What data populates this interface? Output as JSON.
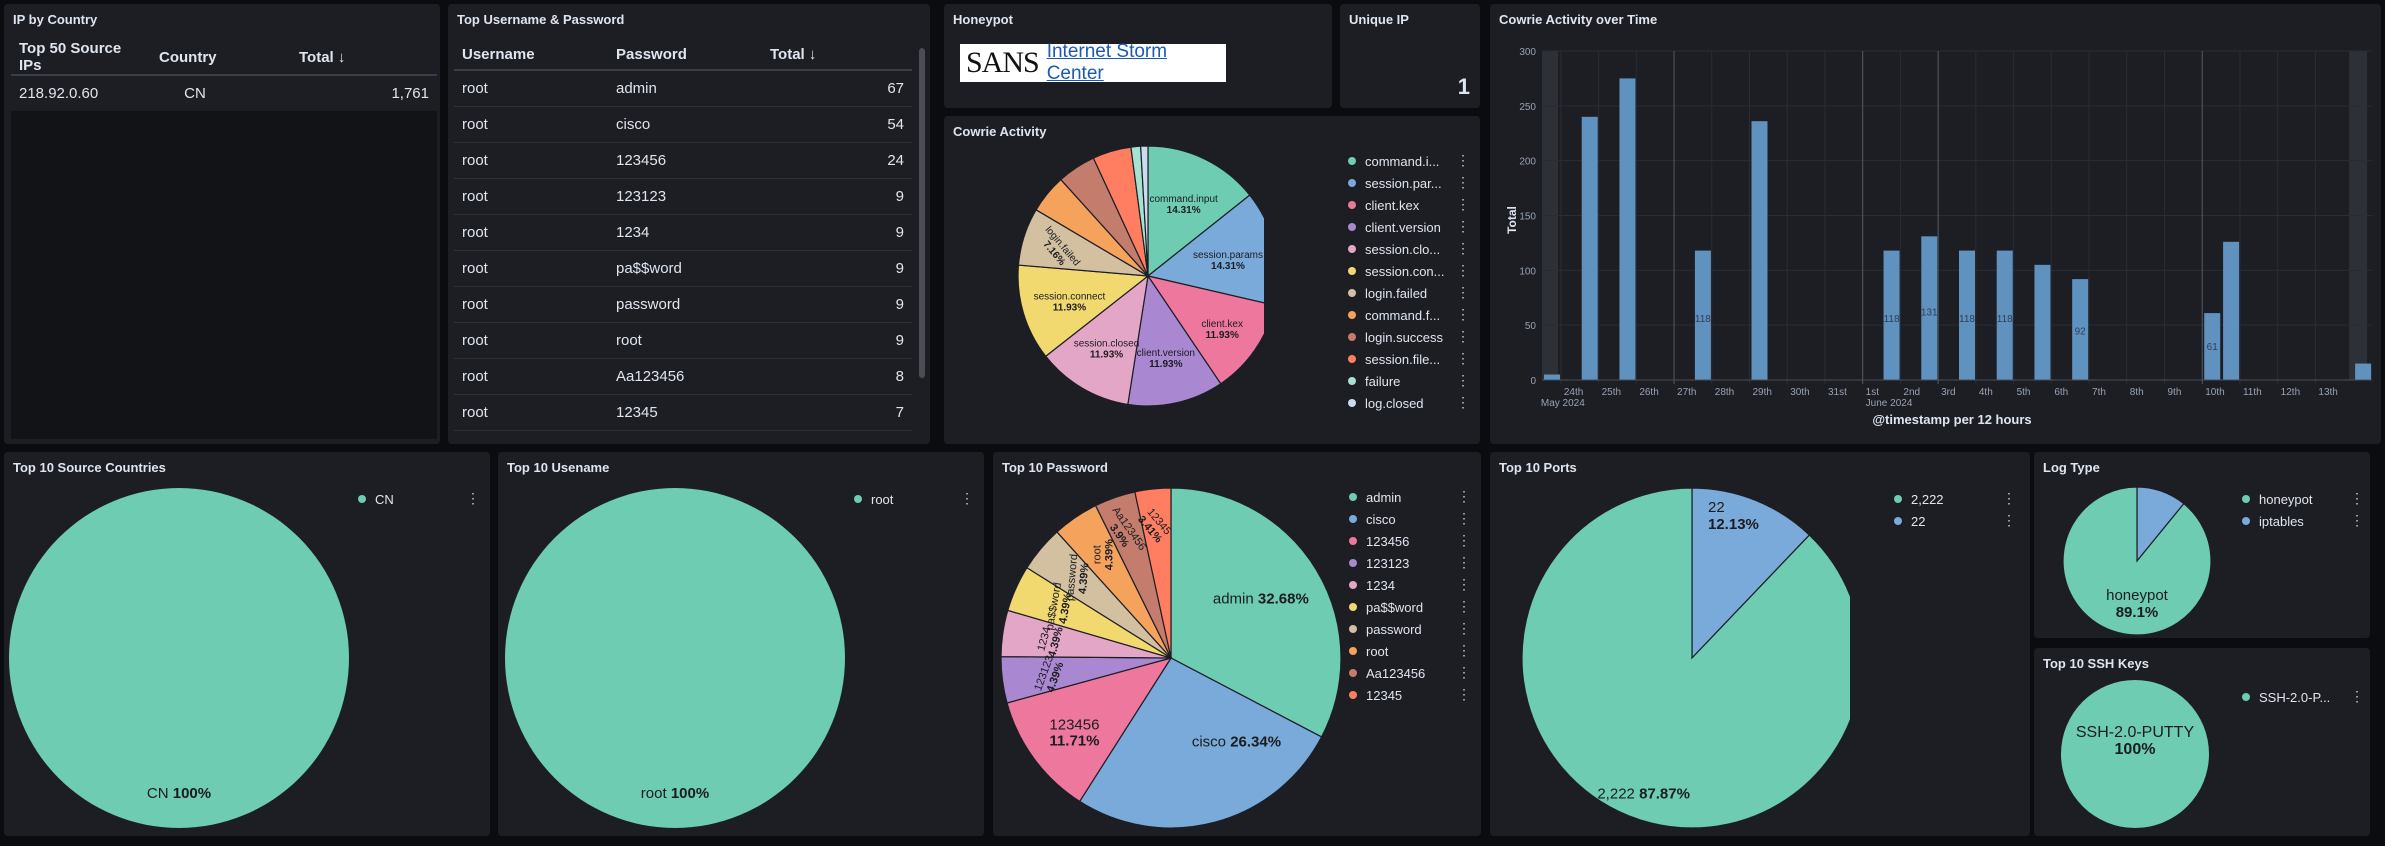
{
  "ip_by_country": {
    "title": "IP by Country",
    "columns": [
      "Top 50 Source IPs",
      "Country",
      "Total ↓"
    ],
    "rows": [
      [
        "218.92.0.60",
        "CN",
        "1,761"
      ]
    ]
  },
  "top_userpass": {
    "title": "Top Username & Password",
    "columns": [
      "Username",
      "Password",
      "Total ↓"
    ],
    "rows": [
      [
        "root",
        "admin",
        "67"
      ],
      [
        "root",
        "cisco",
        "54"
      ],
      [
        "root",
        "123456",
        "24"
      ],
      [
        "root",
        "123123",
        "9"
      ],
      [
        "root",
        "1234",
        "9"
      ],
      [
        "root",
        "pa$$word",
        "9"
      ],
      [
        "root",
        "password",
        "9"
      ],
      [
        "root",
        "root",
        "9"
      ],
      [
        "root",
        "Aa123456",
        "8"
      ],
      [
        "root",
        "12345",
        "7"
      ]
    ]
  },
  "honeypot": {
    "title": "Honeypot",
    "sans": "SANS",
    "link": "Internet Storm Center"
  },
  "unique_ip": {
    "title": "Unique IP",
    "value": "1"
  },
  "cowrie_activity": {
    "title": "Cowrie Activity",
    "legend": [
      "command.i...",
      "session.par...",
      "client.kex",
      "client.version",
      "session.clo...",
      "session.con...",
      "login.failed",
      "command.f...",
      "login.success",
      "session.file...",
      "failure",
      "log.closed"
    ],
    "colors": [
      "#6dccb1",
      "#79aad9",
      "#ee789d",
      "#a987d1",
      "#e4a6c7",
      "#f1d86f",
      "#d2c0a0",
      "#f5a35c",
      "#c47c6c",
      "#ff7e62",
      "#a5e2d4",
      "#cbdcf0"
    ],
    "slice_labels": [
      [
        "command.input",
        "14.31%"
      ],
      [
        "session.params",
        "14.31%"
      ],
      [
        "client.kex",
        "11.93%"
      ],
      [
        "client.version",
        "11.93%"
      ],
      [
        "session.closed",
        "11.93%"
      ],
      [
        "session.connect",
        "11.93%"
      ],
      [
        "login.failed",
        "7.16%"
      ]
    ]
  },
  "activity_over_time": {
    "title": "Cowrie Activity over Time",
    "ylabel": "Total",
    "xlabel": "@timestamp per 12 hours",
    "y_ticks": [
      "300",
      "250",
      "200",
      "150",
      "100",
      "50",
      "0"
    ],
    "x_ticks": [
      "24th",
      "25th",
      "26th",
      "27th",
      "28th",
      "29th",
      "30th",
      "31st",
      "1st",
      "2nd",
      "3rd",
      "4th",
      "5th",
      "6th",
      "7th",
      "8th",
      "9th",
      "10th",
      "11th",
      "12th",
      "13th"
    ],
    "x_sub": [
      "May 2024",
      "June 2024"
    ],
    "bar_labels": [
      "118",
      "118",
      "131",
      "118",
      "118",
      "92",
      "61"
    ]
  },
  "top_source_countries": {
    "title": "Top 10 Source Countries",
    "legend": [
      "CN"
    ],
    "slice_label": "CN",
    "slice_pct": "100%"
  },
  "top_username": {
    "title": "Top 10 Usename",
    "legend": [
      "root"
    ],
    "slice_label": "root",
    "slice_pct": "100%"
  },
  "top_password": {
    "title": "Top 10 Password",
    "legend": [
      "admin",
      "cisco",
      "123456",
      "123123",
      "1234",
      "pa$$word",
      "password",
      "root",
      "Aa123456",
      "12345"
    ],
    "colors": [
      "#6dccb1",
      "#79aad9",
      "#ee789d",
      "#a987d1",
      "#e4a6c7",
      "#f1d86f",
      "#d2c0a0",
      "#f5a35c",
      "#c47c6c",
      "#ff7e62"
    ],
    "labels": [
      [
        "admin",
        "32.68%"
      ],
      [
        "cisco",
        "26.34%"
      ],
      [
        "123456",
        "11.71%"
      ],
      [
        "123123",
        "4.39%"
      ],
      [
        "1234",
        "4.39%"
      ],
      [
        "pa$$word",
        "4.39%"
      ],
      [
        "password",
        "4.39%"
      ],
      [
        "root",
        "4.39%"
      ],
      [
        "Aa123456",
        "3.9%"
      ],
      [
        "12345",
        "3.41%"
      ]
    ]
  },
  "top_ports": {
    "title": "Top 10 Ports",
    "legend": [
      "2,222",
      "22"
    ],
    "labels": [
      [
        "2,222",
        "87.87%"
      ],
      [
        "22",
        "12.13%"
      ]
    ]
  },
  "log_type": {
    "title": "Log Type",
    "legend": [
      "honeypot",
      "iptables"
    ],
    "label": [
      "honeypot",
      "89.1%"
    ]
  },
  "ssh_keys": {
    "title": "Top 10 SSH Keys",
    "legend": [
      "SSH-2.0-P..."
    ],
    "label": [
      "SSH-2.0-PUTTY",
      "100%"
    ]
  },
  "chart_data": [
    {
      "type": "pie",
      "title": "Cowrie Activity",
      "categories": [
        "command.input",
        "session.params",
        "client.kex",
        "client.version",
        "session.closed",
        "session.connect",
        "login.failed",
        "command.failed",
        "login.success",
        "session.file_download",
        "failure",
        "log.closed"
      ],
      "values": [
        14.31,
        14.31,
        11.93,
        11.93,
        11.93,
        11.93,
        7.16,
        4.8,
        4.8,
        4.8,
        1.2,
        0.9
      ]
    },
    {
      "type": "bar",
      "title": "Cowrie Activity over Time",
      "xlabel": "@timestamp per 12 hours",
      "ylabel": "Total",
      "ylim": [
        0,
        300
      ],
      "x": [
        "2024-05-23 12:00",
        "2024-05-24 12:00",
        "2024-05-25 12:00",
        "2024-05-27 12:00",
        "2024-05-29 00:00",
        "2024-06-01 12:00",
        "2024-06-02 12:00",
        "2024-06-03 12:00",
        "2024-06-04 12:00",
        "2024-06-05 12:00",
        "2024-06-06 12:00",
        "2024-06-10 00:00",
        "2024-06-10 12:00",
        "2024-06-14 00:00"
      ],
      "values": [
        5,
        240,
        275,
        118,
        236,
        118,
        131,
        118,
        118,
        105,
        92,
        61,
        126,
        15
      ]
    },
    {
      "type": "pie",
      "title": "Top 10 Source Countries",
      "categories": [
        "CN"
      ],
      "values": [
        100
      ]
    },
    {
      "type": "pie",
      "title": "Top 10 Usename",
      "categories": [
        "root"
      ],
      "values": [
        100
      ]
    },
    {
      "type": "pie",
      "title": "Top 10 Password",
      "categories": [
        "admin",
        "cisco",
        "123456",
        "123123",
        "1234",
        "pa$$word",
        "password",
        "root",
        "Aa123456",
        "12345"
      ],
      "values": [
        32.68,
        26.34,
        11.71,
        4.39,
        4.39,
        4.39,
        4.39,
        4.39,
        3.9,
        3.41
      ]
    },
    {
      "type": "pie",
      "title": "Top 10 Ports",
      "categories": [
        "2,222",
        "22"
      ],
      "values": [
        87.87,
        12.13
      ]
    },
    {
      "type": "pie",
      "title": "Log Type",
      "categories": [
        "honeypot",
        "iptables"
      ],
      "values": [
        89.1,
        10.9
      ]
    },
    {
      "type": "pie",
      "title": "Top 10 SSH Keys",
      "categories": [
        "SSH-2.0-PUTTY"
      ],
      "values": [
        100
      ]
    }
  ]
}
